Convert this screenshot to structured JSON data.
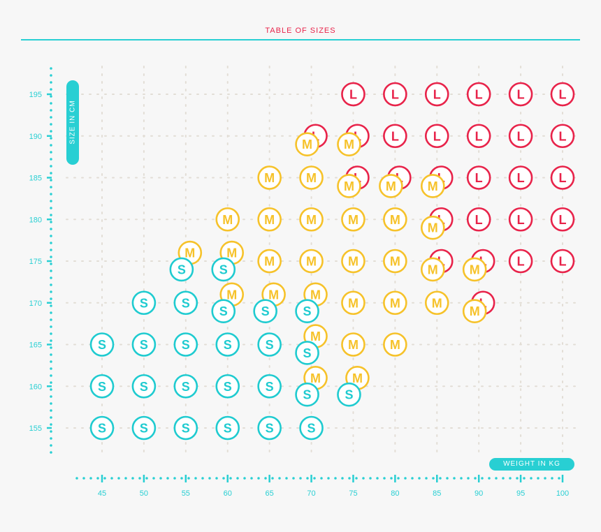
{
  "chart_data": {
    "type": "scatter",
    "title": "TABLE OF SIZES",
    "xlabel": "WEIGHT IN KG",
    "ylabel": "SIZE IN CM",
    "xlim": [
      45,
      100
    ],
    "ylim": [
      155,
      195
    ],
    "x_ticks": [
      45,
      50,
      55,
      60,
      65,
      70,
      75,
      80,
      85,
      90,
      95,
      100
    ],
    "y_ticks": [
      155,
      160,
      165,
      170,
      175,
      180,
      185,
      190,
      195
    ],
    "grid": true,
    "colors": {
      "S": "#1fcbd0",
      "M": "#f6c22a",
      "L": "#e8234a",
      "axis": "#28cfd3",
      "grid": "#e2ddd5"
    },
    "series": [
      {
        "name": "L",
        "points": [
          [
            75,
            195
          ],
          [
            80,
            195
          ],
          [
            85,
            195
          ],
          [
            90,
            195
          ],
          [
            95,
            195
          ],
          [
            100,
            195
          ],
          [
            70.5,
            190
          ],
          [
            75.5,
            190
          ],
          [
            80,
            190
          ],
          [
            85,
            190
          ],
          [
            90,
            190
          ],
          [
            95,
            190
          ],
          [
            100,
            190
          ],
          [
            75.5,
            185
          ],
          [
            80.5,
            185
          ],
          [
            85.5,
            185
          ],
          [
            90,
            185
          ],
          [
            95,
            185
          ],
          [
            100,
            185
          ],
          [
            85.5,
            180
          ],
          [
            90,
            180
          ],
          [
            95,
            180
          ],
          [
            100,
            180
          ],
          [
            85.5,
            175
          ],
          [
            90.5,
            175
          ],
          [
            95,
            175
          ],
          [
            100,
            175
          ],
          [
            90.5,
            170
          ]
        ]
      },
      {
        "name": "M",
        "points": [
          [
            69.5,
            189
          ],
          [
            74.5,
            189
          ],
          [
            65,
            185
          ],
          [
            70,
            185
          ],
          [
            74.5,
            184
          ],
          [
            79.5,
            184
          ],
          [
            84.5,
            184
          ],
          [
            60,
            180
          ],
          [
            65,
            180
          ],
          [
            70,
            180
          ],
          [
            75,
            180
          ],
          [
            80,
            180
          ],
          [
            84.5,
            179
          ],
          [
            55.5,
            176
          ],
          [
            60.5,
            176
          ],
          [
            65,
            175
          ],
          [
            70,
            175
          ],
          [
            75,
            175
          ],
          [
            80,
            175
          ],
          [
            84.5,
            174
          ],
          [
            89.5,
            174
          ],
          [
            60.5,
            171
          ],
          [
            65.5,
            171
          ],
          [
            70.5,
            171
          ],
          [
            75,
            170
          ],
          [
            80,
            170
          ],
          [
            85,
            170
          ],
          [
            89.5,
            169
          ],
          [
            70.5,
            166
          ],
          [
            75,
            165
          ],
          [
            80,
            165
          ],
          [
            70.5,
            161
          ],
          [
            75.5,
            161
          ]
        ]
      },
      {
        "name": "S",
        "points": [
          [
            54.5,
            174
          ],
          [
            59.5,
            174
          ],
          [
            50,
            170
          ],
          [
            55,
            170
          ],
          [
            59.5,
            169
          ],
          [
            64.5,
            169
          ],
          [
            69.5,
            169
          ],
          [
            45,
            165
          ],
          [
            50,
            165
          ],
          [
            55,
            165
          ],
          [
            60,
            165
          ],
          [
            65,
            165
          ],
          [
            69.5,
            164
          ],
          [
            45,
            160
          ],
          [
            50,
            160
          ],
          [
            55,
            160
          ],
          [
            60,
            160
          ],
          [
            65,
            160
          ],
          [
            69.5,
            159
          ],
          [
            74.5,
            159
          ],
          [
            45,
            155
          ],
          [
            50,
            155
          ],
          [
            55,
            155
          ],
          [
            60,
            155
          ],
          [
            65,
            155
          ],
          [
            70,
            155
          ]
        ]
      }
    ]
  }
}
